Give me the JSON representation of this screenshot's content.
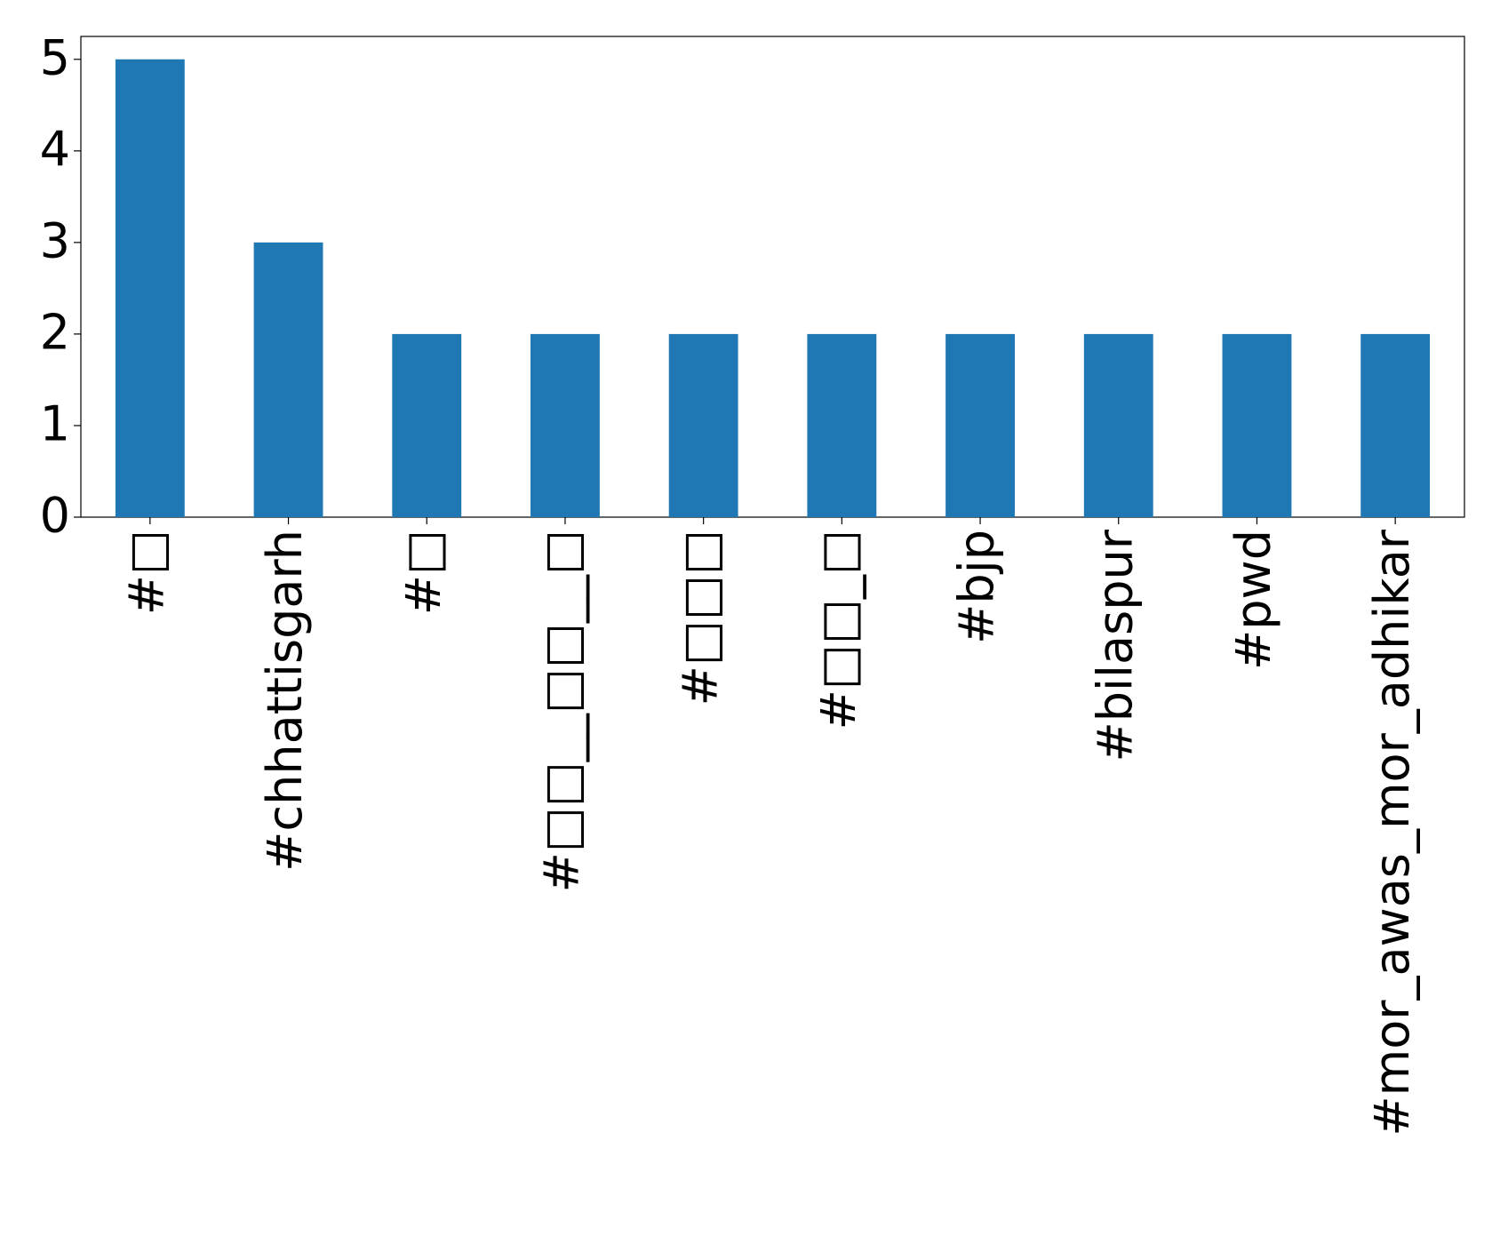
{
  "chart_data": {
    "type": "bar",
    "categories": [
      "#□",
      "#chhattisgarh",
      "#□",
      "#□□__□□__□",
      "#□□□",
      "#□□_□",
      "#bjp",
      "#bilaspur",
      "#pwd",
      "#mor_awas_mor_adhikar"
    ],
    "values": [
      5,
      3,
      2,
      2,
      2,
      2,
      2,
      2,
      2,
      2
    ],
    "color": "#1f77b4",
    "ylim": [
      0,
      5.25
    ],
    "yticks": [
      0,
      1,
      2,
      3,
      4,
      5
    ],
    "grid": false
  }
}
